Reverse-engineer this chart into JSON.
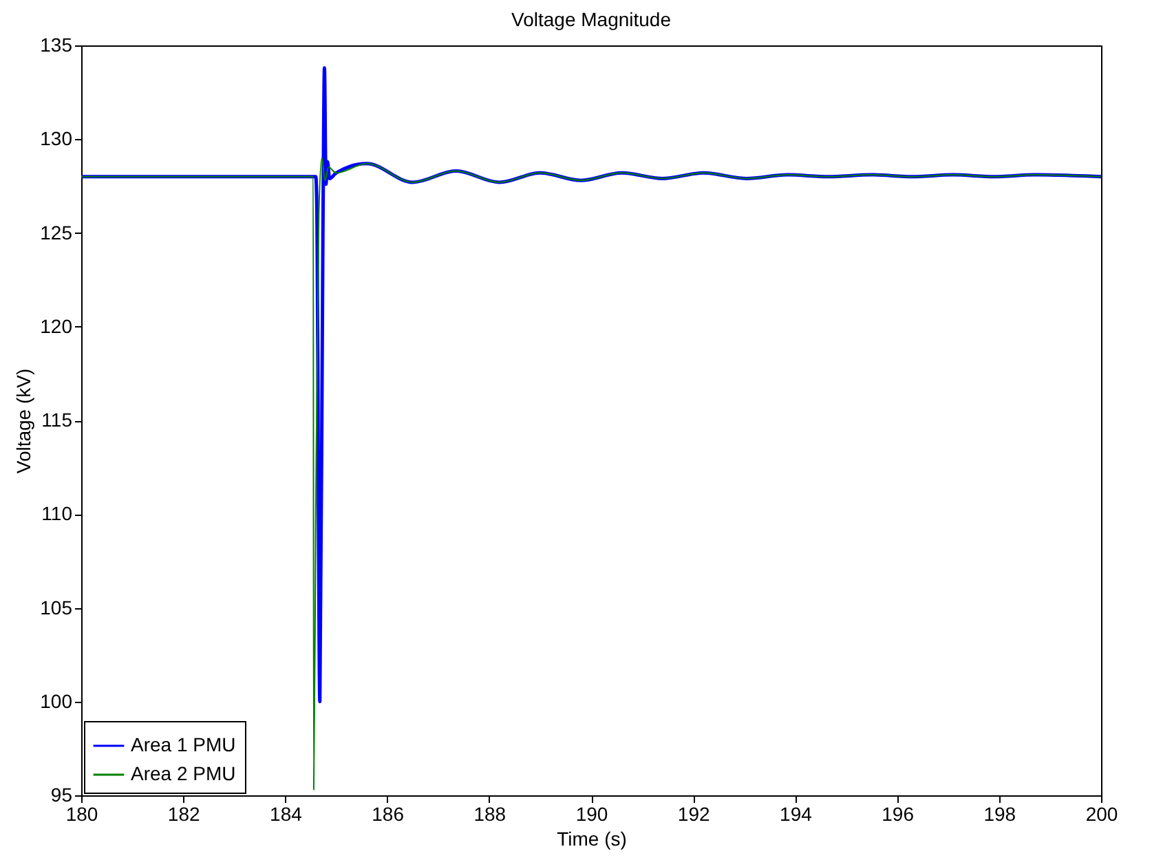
{
  "chart_data": {
    "type": "line",
    "title": "Voltage Magnitude",
    "xlabel": "Time (s)",
    "ylabel": "Voltage (kV)",
    "xlim": [
      180,
      200
    ],
    "xticks": [
      180,
      182,
      184,
      186,
      188,
      190,
      192,
      194,
      196,
      198,
      200
    ],
    "ylim": [
      95,
      135
    ],
    "yticks": [
      95,
      100,
      105,
      110,
      115,
      120,
      125,
      130,
      135
    ],
    "grid": false,
    "legend": "bottom left",
    "series": [
      {
        "name": "Area 1 PMU",
        "color": "#0000ff",
        "x": [
          180,
          184.6,
          184.62,
          184.68,
          184.74,
          184.77,
          184.8,
          184.83,
          184.87,
          185.0,
          185.6,
          186.5,
          187.35,
          188.2,
          189.0,
          189.8,
          190.6,
          191.4,
          192.2,
          193.05,
          193.85,
          194.65,
          195.5,
          196.3,
          197.1,
          197.9,
          198.7,
          200
        ],
        "values": [
          128.0,
          128.0,
          126.5,
          100,
          125,
          133.8,
          127.6,
          128.8,
          127.9,
          128.2,
          128.7,
          127.7,
          128.3,
          127.7,
          128.2,
          127.8,
          128.2,
          127.9,
          128.2,
          127.9,
          128.1,
          128.0,
          128.1,
          128.0,
          128.1,
          128.0,
          128.1,
          128.0
        ]
      },
      {
        "name": "Area 2 PMU",
        "color": "#008000",
        "x": [
          180,
          184.55,
          184.56,
          184.6,
          184.66,
          184.72,
          184.78,
          184.85,
          185.0,
          185.6,
          186.5,
          187.35,
          188.2,
          189.0,
          189.8,
          190.6,
          191.4,
          192.2,
          193.05,
          193.85,
          194.65,
          195.5,
          196.3,
          197.1,
          197.9,
          198.7,
          200
        ],
        "values": [
          128.0,
          128.0,
          95.3,
          110,
          126,
          129.0,
          127.8,
          128.5,
          128.2,
          128.7,
          127.7,
          128.3,
          127.7,
          128.2,
          127.8,
          128.2,
          127.9,
          128.2,
          127.9,
          128.1,
          128.0,
          128.1,
          128.0,
          128.1,
          128.0,
          128.1,
          128.0
        ]
      }
    ]
  }
}
